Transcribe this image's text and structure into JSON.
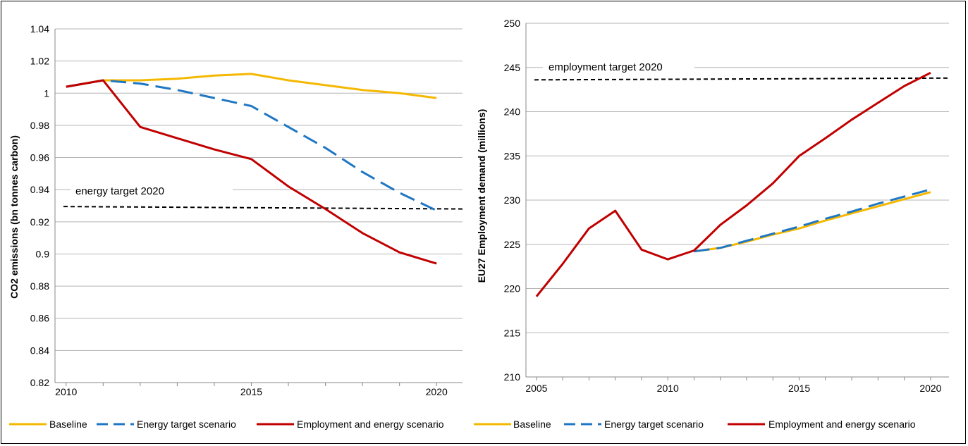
{
  "colors": {
    "baseline": "#f5b800",
    "energy": "#1f77c4",
    "employment": "#c00000",
    "target": "#000000",
    "grid": "#b5b5b5"
  },
  "chart_data": [
    {
      "type": "line",
      "ylabel": "CO2 emissions (bn tonnes carbon)",
      "xlabel": "",
      "xlim": [
        2009.7,
        2020.7
      ],
      "ylim": [
        0.82,
        1.04
      ],
      "x_ticks": [
        "2010",
        "2015",
        "2020"
      ],
      "y_ticks": [
        "1.04",
        "1.02",
        "1",
        "0.98",
        "0.96",
        "0.94",
        "0.92",
        "0.9",
        "0.88",
        "0.86",
        "0.84",
        "0.82"
      ],
      "grid": "horizontal",
      "target_line": {
        "label": "energy target 2020",
        "y_start": 0.9295,
        "y_end": 0.928
      },
      "series": [
        {
          "name": "Baseline",
          "style": "solid",
          "color": "#f5b800",
          "x": [
            2010,
            2011,
            2012,
            2013,
            2014,
            2015,
            2016,
            2017,
            2018,
            2019,
            2020
          ],
          "y": [
            1.004,
            1.008,
            1.008,
            1.009,
            1.011,
            1.012,
            1.008,
            1.005,
            1.002,
            1.0,
            0.997
          ]
        },
        {
          "name": "Energy target scenario",
          "style": "dashed",
          "color": "#1f77c4",
          "x": [
            2010,
            2011,
            2012,
            2013,
            2014,
            2015,
            2016,
            2017,
            2018,
            2019,
            2020
          ],
          "y": [
            1.004,
            1.008,
            1.006,
            1.002,
            0.997,
            0.992,
            0.979,
            0.966,
            0.951,
            0.938,
            0.927
          ]
        },
        {
          "name": "Employment and energy scenario",
          "style": "solid",
          "color": "#c00000",
          "x": [
            2010,
            2011,
            2012,
            2013,
            2014,
            2015,
            2016,
            2017,
            2018,
            2019,
            2020
          ],
          "y": [
            1.004,
            1.008,
            0.979,
            0.972,
            0.965,
            0.959,
            0.942,
            0.928,
            0.913,
            0.901,
            0.894
          ]
        }
      ]
    },
    {
      "type": "line",
      "ylabel": "EU27 Employment demand (millions)",
      "xlabel": "",
      "xlim": [
        2004.6,
        2020.7
      ],
      "ylim": [
        210,
        250
      ],
      "x_ticks": [
        "2005",
        "2010",
        "2015",
        "2020"
      ],
      "y_ticks": [
        "250",
        "245",
        "240",
        "235",
        "230",
        "225",
        "220",
        "215",
        "210"
      ],
      "grid": "horizontal",
      "target_line": {
        "label": "employment target 2020",
        "y_start": 243.6,
        "y_end": 243.8
      },
      "series": [
        {
          "name": "Baseline",
          "style": "solid",
          "color": "#f5b800",
          "x": [
            2011,
            2012,
            2013,
            2014,
            2015,
            2016,
            2017,
            2018,
            2019,
            2020
          ],
          "y": [
            224.2,
            224.6,
            225.3,
            226.1,
            226.8,
            227.7,
            228.5,
            229.3,
            230.1,
            230.9
          ]
        },
        {
          "name": "Energy target scenario",
          "style": "dashed",
          "color": "#1f77c4",
          "x": [
            2011,
            2012,
            2013,
            2014,
            2015,
            2016,
            2017,
            2018,
            2019,
            2020
          ],
          "y": [
            224.2,
            224.6,
            225.4,
            226.2,
            227.0,
            227.9,
            228.7,
            229.6,
            230.4,
            231.2
          ]
        },
        {
          "name": "Employment and energy scenario",
          "style": "solid",
          "color": "#c00000",
          "x": [
            2005,
            2006,
            2007,
            2008,
            2009,
            2010,
            2011,
            2012,
            2013,
            2014,
            2015,
            2016,
            2017,
            2018,
            2019,
            2020
          ],
          "y": [
            219.1,
            222.8,
            226.8,
            228.8,
            224.4,
            223.3,
            224.3,
            227.2,
            229.4,
            231.9,
            235.0,
            237.0,
            239.1,
            241.0,
            242.9,
            244.4
          ]
        }
      ]
    }
  ],
  "legend": [
    {
      "label": "Baseline",
      "color": "#f5b800",
      "style": "solid"
    },
    {
      "label": "Energy target scenario",
      "color": "#1f77c4",
      "style": "dashed"
    },
    {
      "label": "Employment and energy scenario",
      "color": "#c00000",
      "style": "solid"
    },
    {
      "label": "Baseline",
      "color": "#f5b800",
      "style": "solid"
    },
    {
      "label": "Energy target scenario",
      "color": "#1f77c4",
      "style": "dashed"
    },
    {
      "label": "Employment and energy scenario",
      "color": "#c00000",
      "style": "solid"
    }
  ]
}
